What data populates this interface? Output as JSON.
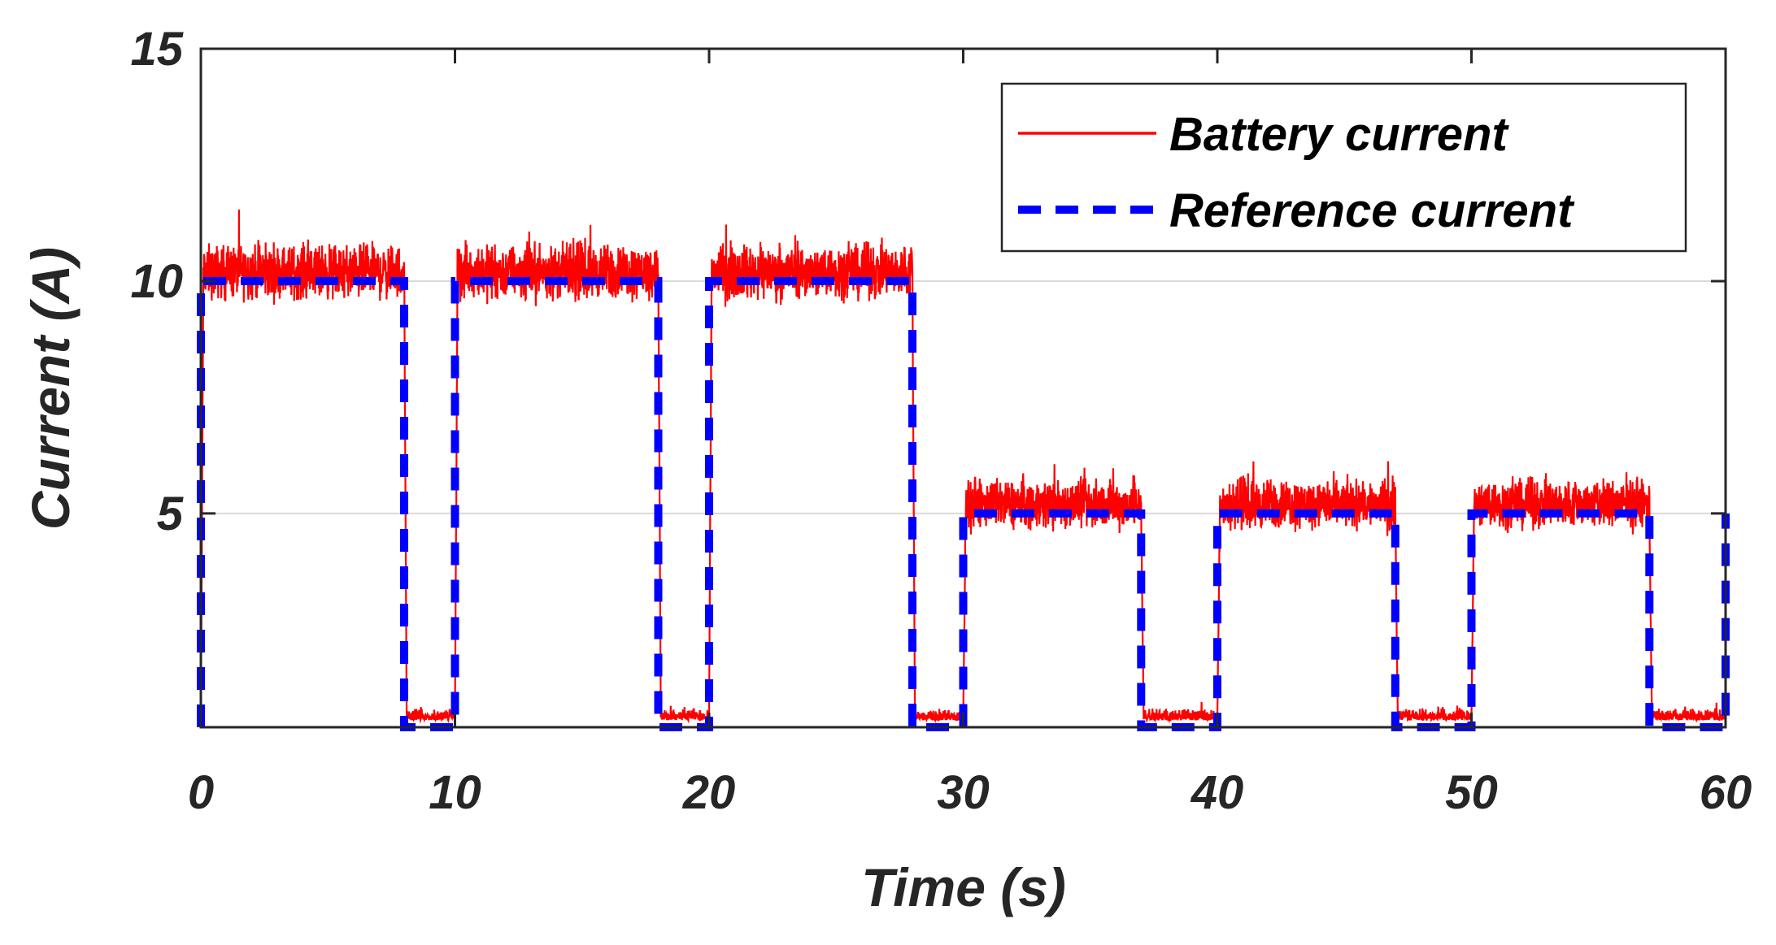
{
  "chart_data": {
    "type": "line",
    "title": "",
    "xlabel": "Time (s)",
    "ylabel": "Current (A)",
    "xlim": [
      0,
      60
    ],
    "ylim": [
      0.4,
      15
    ],
    "xticks": [
      0,
      10,
      20,
      30,
      40,
      50,
      60
    ],
    "xtick_labels": [
      "0",
      "10",
      "20",
      "30",
      "40",
      "50",
      "60"
    ],
    "yticks": [
      5,
      10,
      15
    ],
    "ytick_labels": [
      "5",
      "10",
      "15"
    ],
    "grid": "horizontal",
    "legend_position": "top-right",
    "series": [
      {
        "name": "Battery current",
        "style": "solid",
        "color": "#ff0000",
        "noise_note": "noisy measurement around reference, approx ±1.2 A",
        "x": [
          0,
          0.1,
          8,
          8.1,
          10,
          10.1,
          18,
          18.1,
          20,
          20.1,
          28,
          28.1,
          30,
          30.1,
          37,
          37.1,
          40,
          40.1,
          47,
          47.1,
          50,
          50.1,
          57,
          57.1,
          60
        ],
        "values": [
          0.4,
          10,
          10,
          0.6,
          0.6,
          10,
          10,
          0.6,
          0.6,
          10,
          10,
          0.6,
          0.6,
          5,
          5,
          0.6,
          0.6,
          5,
          5,
          0.6,
          0.6,
          5,
          5,
          0.6,
          0.6
        ]
      },
      {
        "name": "Reference current",
        "style": "dashed",
        "color": "#0000ff",
        "x": [
          0,
          0,
          8,
          8,
          10,
          10,
          18,
          18,
          20,
          20,
          28,
          28,
          30,
          30,
          37,
          37,
          40,
          40,
          47,
          47,
          50,
          50,
          57,
          57,
          60,
          60
        ],
        "values": [
          0.4,
          10,
          10,
          0.4,
          0.4,
          10,
          10,
          0.4,
          0.4,
          10,
          10,
          0.4,
          0.4,
          5,
          5,
          0.4,
          0.4,
          5,
          5,
          0.4,
          0.4,
          5,
          5,
          0.4,
          0.4,
          5
        ]
      }
    ]
  },
  "colors": {
    "battery": "#ff0000",
    "reference": "#0000ff",
    "axis": "#262626",
    "grid": "#d9d9d9"
  }
}
